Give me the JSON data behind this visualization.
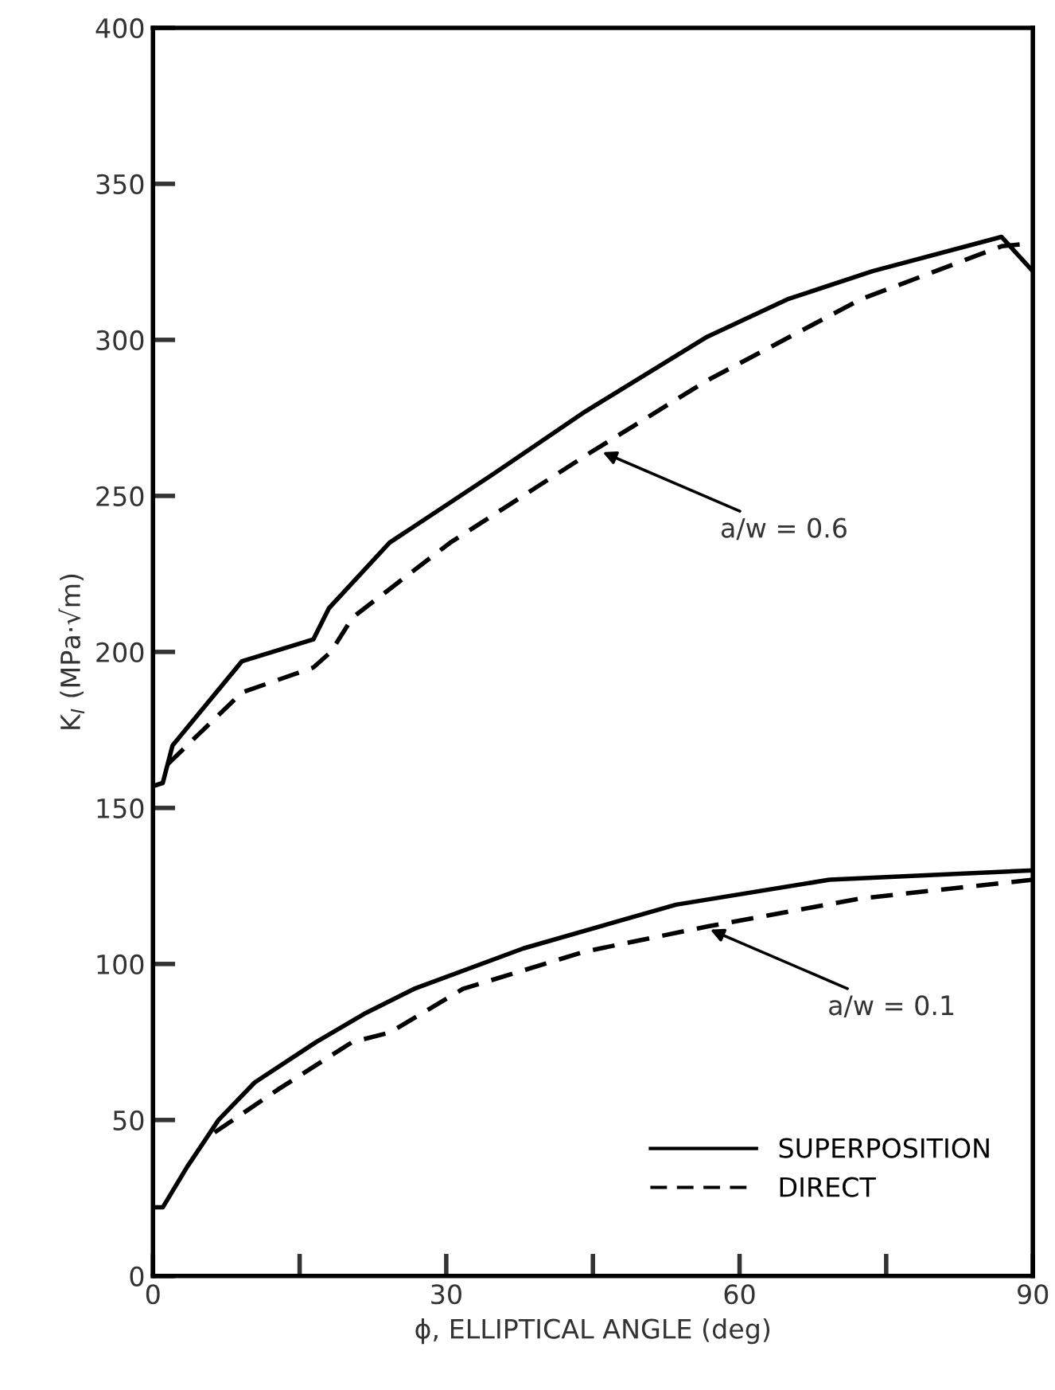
{
  "chart_data": {
    "type": "line",
    "xlabel": "ϕ, ELLIPTICAL ANGLE (deg)",
    "ylabel": "K$_{I}$ (MPa·√m)",
    "xlim": [
      0,
      90
    ],
    "ylim": [
      0,
      400
    ],
    "xticks": [
      0,
      {
        "value": 15,
        "label": null
      },
      30,
      {
        "value": 45,
        "label": null
      },
      60,
      {
        "value": 75,
        "label": null
      },
      90
    ],
    "yticks": [
      0,
      50,
      100,
      150,
      200,
      250,
      300,
      350,
      400
    ],
    "grid": false,
    "legend": "bottom right",
    "marker": "none",
    "series": [
      {
        "name": "SUPERPOSITION",
        "color": "#000000",
        "line_style": "solid",
        "x": [
          0,
          1,
          3.5,
          6.7,
          10.4,
          16.7,
          21.6,
          26.7,
          37.9,
          53.5,
          69.2,
          90
        ],
        "values": [
          22,
          22,
          35,
          50,
          62,
          75,
          84,
          92,
          105,
          119,
          127,
          130
        ]
      },
      {
        "name": "DIRECT",
        "color": "#000000",
        "line_style": "dashed",
        "x": [
          6.3,
          12.9,
          20.4,
          24.2,
          31.7,
          44.2,
          56.7,
          72.4,
          90
        ],
        "values": [
          46,
          60,
          75,
          78,
          92,
          104,
          112,
          121,
          127
        ]
      },
      {
        "color": "#000000",
        "line_style": "solid",
        "x": [
          0,
          1,
          2,
          9.1,
          16.4,
          18,
          24.2,
          34.8,
          44.2,
          56.7,
          64.9,
          73.6,
          86.8,
          90
        ],
        "values": [
          157,
          158,
          170,
          197,
          204,
          214,
          235,
          257,
          277,
          301,
          313,
          322,
          333,
          322
        ]
      },
      {
        "color": "#000000",
        "line_style": "dashed",
        "x": [
          1.5,
          9.1,
          16.4,
          18.2,
          20.4,
          30.4,
          44.8,
          56.7,
          72.4,
          86.8,
          90
        ],
        "values": [
          164,
          187,
          195,
          200,
          211,
          235,
          264,
          287,
          313,
          330,
          331
        ]
      }
    ],
    "annotations": [
      {
        "text": "a/w = 0.6",
        "x": 46,
        "y": 264
      },
      {
        "text": "a/w = 0.1",
        "x": 57,
        "y": 111
      }
    ]
  }
}
